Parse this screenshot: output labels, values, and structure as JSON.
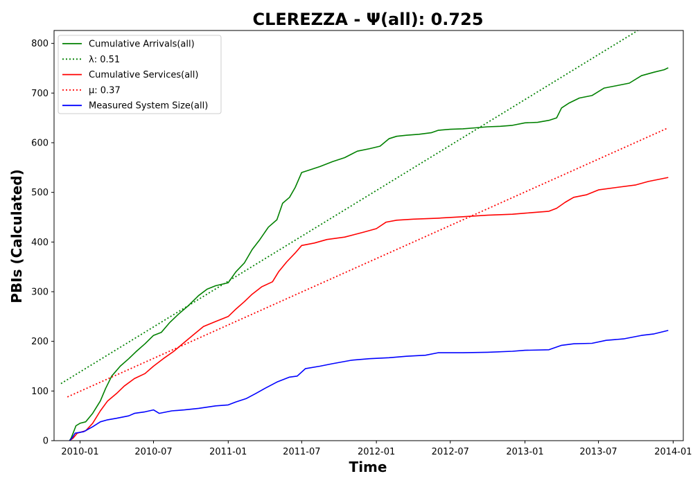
{
  "chart_data": {
    "type": "line",
    "title": "CLEREZZA -  Ψ(all): 0.725",
    "xlabel": "Time",
    "ylabel": "PBIs (Calculated)",
    "xlim": [
      "2009-10-29",
      "2014-01-26"
    ],
    "ylim": [
      0,
      826
    ],
    "x_ticks": [
      "2010-01",
      "2010-07",
      "2011-01",
      "2011-07",
      "2012-01",
      "2012-07",
      "2013-01",
      "2013-07",
      "2014-01"
    ],
    "y_ticks": [
      0,
      100,
      200,
      300,
      400,
      500,
      600,
      700,
      800
    ],
    "grid": false,
    "legend_position": "top-left",
    "series": [
      {
        "name": "Cumulative Arrivals(all)",
        "color": "#008000",
        "style": "solid",
        "points": [
          [
            "2009-12-06",
            0
          ],
          [
            "2009-12-10",
            5
          ],
          [
            "2009-12-15",
            15
          ],
          [
            "2009-12-22",
            30
          ],
          [
            "2010-01-01",
            35
          ],
          [
            "2010-01-15",
            38
          ],
          [
            "2010-02-01",
            55
          ],
          [
            "2010-02-20",
            80
          ],
          [
            "2010-03-05",
            105
          ],
          [
            "2010-03-20",
            130
          ],
          [
            "2010-04-10",
            150
          ],
          [
            "2010-05-01",
            165
          ],
          [
            "2010-05-20",
            180
          ],
          [
            "2010-06-10",
            195
          ],
          [
            "2010-07-01",
            212
          ],
          [
            "2010-07-20",
            218
          ],
          [
            "2010-08-10",
            238
          ],
          [
            "2010-09-01",
            255
          ],
          [
            "2010-09-25",
            272
          ],
          [
            "2010-10-20",
            292
          ],
          [
            "2010-11-10",
            305
          ],
          [
            "2010-12-01",
            312
          ],
          [
            "2011-01-01",
            318
          ],
          [
            "2011-01-20",
            340
          ],
          [
            "2011-02-10",
            358
          ],
          [
            "2011-03-01",
            385
          ],
          [
            "2011-03-20",
            405
          ],
          [
            "2011-04-10",
            430
          ],
          [
            "2011-05-01",
            445
          ],
          [
            "2011-05-15",
            478
          ],
          [
            "2011-06-01",
            490
          ],
          [
            "2011-06-15",
            510
          ],
          [
            "2011-07-01",
            540
          ],
          [
            "2011-07-20",
            545
          ],
          [
            "2011-08-15",
            552
          ],
          [
            "2011-09-15",
            562
          ],
          [
            "2011-10-15",
            570
          ],
          [
            "2011-11-15",
            583
          ],
          [
            "2011-12-15",
            588
          ],
          [
            "2012-01-10",
            593
          ],
          [
            "2012-02-01",
            608
          ],
          [
            "2012-02-20",
            613
          ],
          [
            "2012-03-15",
            615
          ],
          [
            "2012-04-15",
            617
          ],
          [
            "2012-05-15",
            620
          ],
          [
            "2012-06-01",
            625
          ],
          [
            "2012-07-01",
            627
          ],
          [
            "2012-08-01",
            628
          ],
          [
            "2012-09-01",
            630
          ],
          [
            "2012-10-01",
            632
          ],
          [
            "2012-11-01",
            633
          ],
          [
            "2012-12-01",
            635
          ],
          [
            "2013-01-01",
            640
          ],
          [
            "2013-02-01",
            641
          ],
          [
            "2013-03-01",
            645
          ],
          [
            "2013-03-20",
            650
          ],
          [
            "2013-04-01",
            670
          ],
          [
            "2013-04-20",
            680
          ],
          [
            "2013-05-15",
            690
          ],
          [
            "2013-06-15",
            695
          ],
          [
            "2013-07-15",
            710
          ],
          [
            "2013-08-15",
            715
          ],
          [
            "2013-09-15",
            720
          ],
          [
            "2013-10-15",
            735
          ],
          [
            "2013-11-15",
            742
          ],
          [
            "2013-12-10",
            747
          ],
          [
            "2013-12-20",
            751
          ]
        ]
      },
      {
        "name": "λ: 0.51",
        "color": "#008000",
        "style": "dotted",
        "points": [
          [
            "2009-11-15",
            115
          ],
          [
            "2013-10-06",
            826
          ]
        ]
      },
      {
        "name": "Cumulative Services(all)",
        "color": "#ff0000",
        "style": "solid",
        "points": [
          [
            "2009-12-06",
            0
          ],
          [
            "2009-12-15",
            5
          ],
          [
            "2009-12-25",
            15
          ],
          [
            "2010-01-15",
            20
          ],
          [
            "2010-02-01",
            35
          ],
          [
            "2010-02-20",
            60
          ],
          [
            "2010-03-10",
            80
          ],
          [
            "2010-04-01",
            95
          ],
          [
            "2010-04-20",
            110
          ],
          [
            "2010-05-15",
            125
          ],
          [
            "2010-06-10",
            135
          ],
          [
            "2010-07-01",
            150
          ],
          [
            "2010-07-25",
            165
          ],
          [
            "2010-08-20",
            180
          ],
          [
            "2010-09-15",
            198
          ],
          [
            "2010-10-10",
            215
          ],
          [
            "2010-11-01",
            230
          ],
          [
            "2010-12-01",
            240
          ],
          [
            "2011-01-01",
            250
          ],
          [
            "2011-01-20",
            265
          ],
          [
            "2011-02-10",
            280
          ],
          [
            "2011-03-01",
            295
          ],
          [
            "2011-03-25",
            310
          ],
          [
            "2011-04-20",
            320
          ],
          [
            "2011-05-05",
            340
          ],
          [
            "2011-05-25",
            360
          ],
          [
            "2011-06-15",
            378
          ],
          [
            "2011-07-01",
            393
          ],
          [
            "2011-08-01",
            398
          ],
          [
            "2011-09-01",
            405
          ],
          [
            "2011-10-15",
            410
          ],
          [
            "2011-12-01",
            420
          ],
          [
            "2012-01-01",
            427
          ],
          [
            "2012-01-25",
            440
          ],
          [
            "2012-02-20",
            444
          ],
          [
            "2012-04-01",
            446
          ],
          [
            "2012-06-01",
            448
          ],
          [
            "2012-08-01",
            451
          ],
          [
            "2012-10-01",
            454
          ],
          [
            "2012-12-01",
            456
          ],
          [
            "2013-01-01",
            458
          ],
          [
            "2013-03-01",
            462
          ],
          [
            "2013-03-20",
            468
          ],
          [
            "2013-04-10",
            480
          ],
          [
            "2013-05-01",
            490
          ],
          [
            "2013-06-01",
            495
          ],
          [
            "2013-07-01",
            505
          ],
          [
            "2013-08-15",
            510
          ],
          [
            "2013-10-01",
            515
          ],
          [
            "2013-11-01",
            522
          ],
          [
            "2013-12-20",
            530
          ]
        ]
      },
      {
        "name": "μ: 0.37",
        "color": "#ff0000",
        "style": "dotted",
        "points": [
          [
            "2009-12-01",
            88
          ],
          [
            "2013-12-20",
            630
          ]
        ]
      },
      {
        "name": "Measured System Size(all)",
        "color": "#0000ff",
        "style": "solid",
        "points": [
          [
            "2009-12-06",
            0
          ],
          [
            "2009-12-12",
            5
          ],
          [
            "2009-12-20",
            15
          ],
          [
            "2010-01-10",
            18
          ],
          [
            "2010-02-01",
            28
          ],
          [
            "2010-02-20",
            38
          ],
          [
            "2010-03-10",
            42
          ],
          [
            "2010-04-01",
            45
          ],
          [
            "2010-05-01",
            50
          ],
          [
            "2010-05-15",
            55
          ],
          [
            "2010-06-10",
            58
          ],
          [
            "2010-07-01",
            62
          ],
          [
            "2010-07-15",
            55
          ],
          [
            "2010-08-15",
            60
          ],
          [
            "2010-09-15",
            62
          ],
          [
            "2010-10-20",
            65
          ],
          [
            "2010-12-01",
            70
          ],
          [
            "2011-01-01",
            72
          ],
          [
            "2011-01-20",
            78
          ],
          [
            "2011-02-15",
            85
          ],
          [
            "2011-03-10",
            95
          ],
          [
            "2011-04-01",
            105
          ],
          [
            "2011-05-01",
            118
          ],
          [
            "2011-06-01",
            128
          ],
          [
            "2011-06-20",
            130
          ],
          [
            "2011-07-10",
            145
          ],
          [
            "2011-08-15",
            150
          ],
          [
            "2011-09-15",
            155
          ],
          [
            "2011-11-01",
            162
          ],
          [
            "2011-12-15",
            165
          ],
          [
            "2012-02-01",
            167
          ],
          [
            "2012-03-15",
            170
          ],
          [
            "2012-05-01",
            172
          ],
          [
            "2012-06-01",
            177
          ],
          [
            "2012-08-01",
            177
          ],
          [
            "2012-10-01",
            178
          ],
          [
            "2012-12-01",
            180
          ],
          [
            "2013-01-01",
            182
          ],
          [
            "2013-03-01",
            183
          ],
          [
            "2013-04-01",
            192
          ],
          [
            "2013-05-01",
            195
          ],
          [
            "2013-06-15",
            196
          ],
          [
            "2013-07-20",
            202
          ],
          [
            "2013-09-01",
            205
          ],
          [
            "2013-10-15",
            212
          ],
          [
            "2013-11-15",
            215
          ],
          [
            "2013-12-20",
            222
          ]
        ]
      }
    ]
  },
  "legend": [
    {
      "label": "Cumulative Arrivals(all)",
      "color": "#008000",
      "style": "solid"
    },
    {
      "label": "λ: 0.51",
      "color": "#008000",
      "style": "dotted"
    },
    {
      "label": "Cumulative Services(all)",
      "color": "#ff0000",
      "style": "solid"
    },
    {
      "label": "μ: 0.37",
      "color": "#ff0000",
      "style": "dotted"
    },
    {
      "label": "Measured System Size(all)",
      "color": "#0000ff",
      "style": "solid"
    }
  ]
}
